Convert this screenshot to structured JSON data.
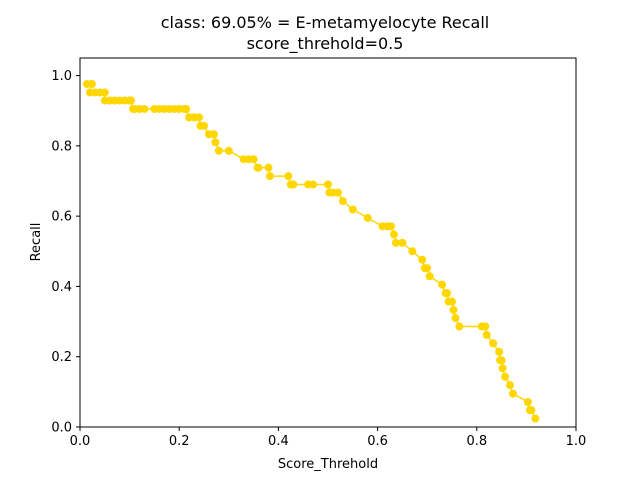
{
  "chart_data": {
    "type": "line",
    "title": "class: 69.05% = E-metamyelocyte Recall",
    "subtitle": "score_threhold=0.5",
    "xlabel": "Score_Threhold",
    "ylabel": "Recall",
    "xlim": [
      0.0,
      1.0
    ],
    "ylim": [
      0.0,
      1.05
    ],
    "xticks": [
      "0.0",
      "0.2",
      "0.4",
      "0.6",
      "0.8",
      "1.0"
    ],
    "yticks": [
      "0.0",
      "0.2",
      "0.4",
      "0.6",
      "0.8",
      "1.0"
    ],
    "grid": false,
    "series_color": "#FFD700",
    "series": [
      {
        "x": [
          0.014,
          0.024,
          0.02,
          0.03,
          0.04,
          0.05,
          0.05,
          0.06,
          0.07,
          0.08,
          0.09,
          0.1,
          0.103,
          0.107,
          0.11,
          0.12,
          0.13,
          0.15,
          0.16,
          0.17,
          0.18,
          0.19,
          0.2,
          0.21,
          0.214,
          0.22,
          0.23,
          0.24,
          0.243,
          0.25,
          0.26,
          0.27,
          0.273,
          0.28,
          0.3,
          0.33,
          0.34,
          0.35,
          0.358,
          0.36,
          0.38,
          0.383,
          0.42,
          0.425,
          0.43,
          0.46,
          0.47,
          0.5,
          0.503,
          0.51,
          0.52,
          0.53,
          0.55,
          0.58,
          0.61,
          0.62,
          0.627,
          0.633,
          0.637,
          0.65,
          0.67,
          0.69,
          0.695,
          0.7,
          0.705,
          0.73,
          0.737,
          0.74,
          0.743,
          0.75,
          0.753,
          0.757,
          0.765,
          0.81,
          0.817,
          0.82,
          0.833,
          0.845,
          0.847,
          0.85,
          0.852,
          0.857,
          0.867,
          0.873,
          0.903,
          0.907,
          0.91,
          0.918
        ],
        "y": [
          0.976,
          0.976,
          0.952,
          0.952,
          0.952,
          0.952,
          0.929,
          0.929,
          0.929,
          0.929,
          0.929,
          0.929,
          0.929,
          0.905,
          0.905,
          0.905,
          0.905,
          0.905,
          0.905,
          0.905,
          0.905,
          0.905,
          0.905,
          0.905,
          0.905,
          0.881,
          0.881,
          0.881,
          0.857,
          0.857,
          0.833,
          0.833,
          0.81,
          0.786,
          0.786,
          0.762,
          0.762,
          0.762,
          0.738,
          0.738,
          0.738,
          0.714,
          0.714,
          0.69,
          0.69,
          0.69,
          0.69,
          0.69,
          0.667,
          0.667,
          0.667,
          0.643,
          0.619,
          0.595,
          0.571,
          0.571,
          0.571,
          0.548,
          0.524,
          0.524,
          0.5,
          0.476,
          0.452,
          0.452,
          0.429,
          0.405,
          0.381,
          0.381,
          0.357,
          0.357,
          0.333,
          0.31,
          0.286,
          0.286,
          0.286,
          0.262,
          0.238,
          0.214,
          0.19,
          0.19,
          0.167,
          0.143,
          0.119,
          0.095,
          0.071,
          0.048,
          0.048,
          0.024
        ]
      }
    ]
  }
}
